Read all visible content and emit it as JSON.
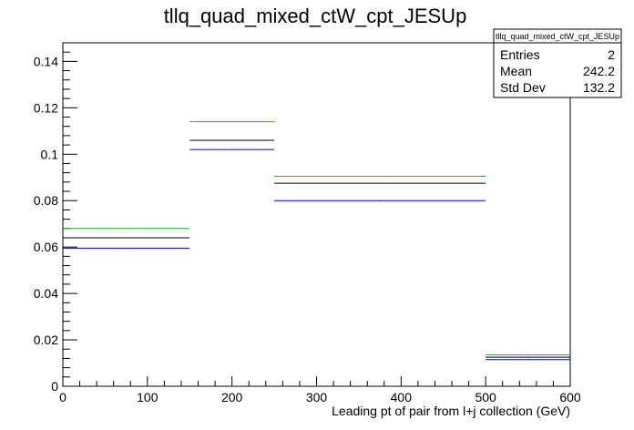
{
  "chart_data": {
    "type": "histogram-step",
    "title": "tllq_quad_mixed_ctW_cpt_JESUp",
    "xlabel": "Leading pt of pair from l+j collection (GeV)",
    "ylabel": "",
    "xlim": [
      0,
      600
    ],
    "ylim": [
      0,
      0.148
    ],
    "x_ticks": [
      0,
      100,
      200,
      300,
      400,
      500,
      600
    ],
    "y_ticks": [
      0,
      0.02,
      0.04,
      0.06,
      0.08,
      0.1,
      0.12,
      0.14
    ],
    "x_tick_labels": [
      "0",
      "100",
      "200",
      "300",
      "400",
      "500",
      "600"
    ],
    "y_tick_labels": [
      "0",
      "0.02",
      "0.04",
      "0.06",
      "0.08",
      "0.1",
      "0.12",
      "0.14"
    ],
    "bin_edges": [
      0,
      150,
      250,
      500,
      600
    ],
    "series": [
      {
        "color": "#00cc00",
        "values": [
          0.068,
          0.114,
          0.0905,
          0.0135
        ]
      },
      {
        "color": "#000000",
        "values": [
          0.064,
          0.106,
          0.0875,
          0.0125
        ]
      },
      {
        "color": "#0000cc",
        "values": [
          0.0595,
          0.102,
          0.08,
          0.0115
        ]
      }
    ],
    "grid": false,
    "legend": "none",
    "stats_box": {
      "title": "tllq_quad_mixed_ctW_cpt_JESUp",
      "position": "top-right",
      "rows": [
        {
          "label": "Entries",
          "value": "2"
        },
        {
          "label": "Mean",
          "value": "242.2"
        },
        {
          "label": "Std Dev",
          "value": "132.2"
        }
      ]
    }
  }
}
